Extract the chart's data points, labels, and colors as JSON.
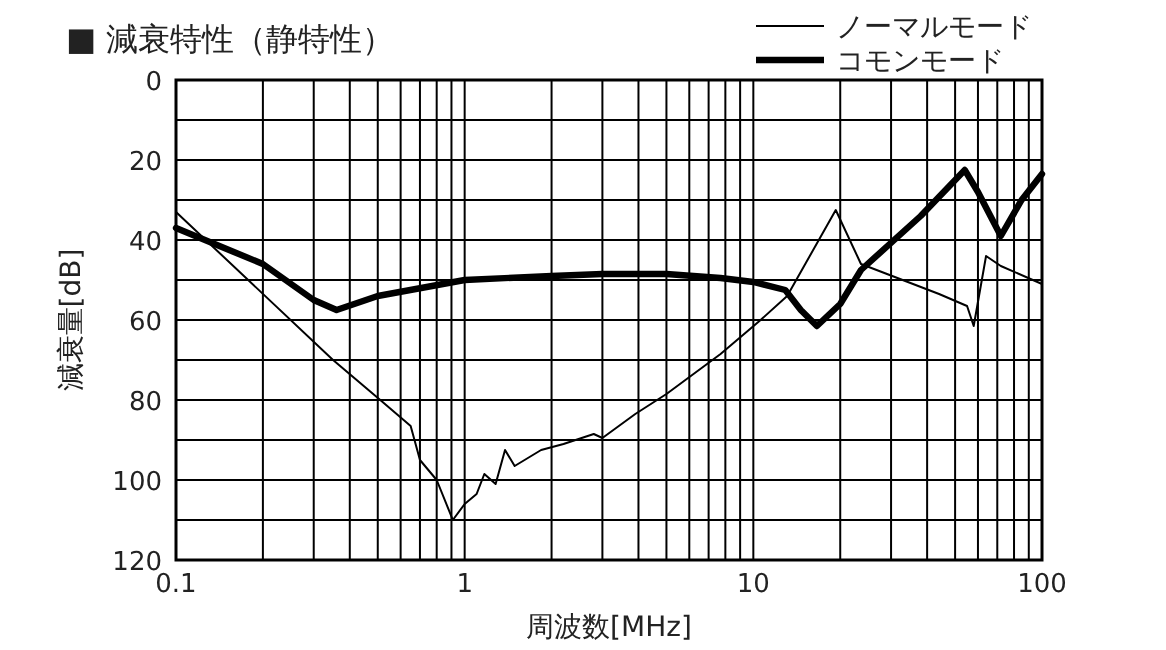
{
  "chart_data": {
    "type": "line",
    "title": "■ 減衰特性（静特性）",
    "xlabel": "周波数[MHz]",
    "ylabel": "減衰量[dB]",
    "log": "x",
    "grid": true,
    "legend": "top right",
    "marker": "none",
    "line_style": "solid",
    "xlim": [
      0.1,
      100
    ],
    "ylim": [
      120,
      0
    ],
    "xticks": [
      0.1,
      {
        "value": 0.2,
        "label": null
      },
      {
        "value": 0.3,
        "label": null
      },
      {
        "value": 0.4,
        "label": null
      },
      {
        "value": 0.5,
        "label": null
      },
      {
        "value": 0.6,
        "label": null
      },
      {
        "value": 0.7,
        "label": null
      },
      {
        "value": 0.8,
        "label": null
      },
      {
        "value": 0.9,
        "label": null
      },
      1,
      {
        "value": 2,
        "label": null
      },
      {
        "value": 3,
        "label": null
      },
      {
        "value": 4,
        "label": null
      },
      {
        "value": 5,
        "label": null
      },
      {
        "value": 6,
        "label": null
      },
      {
        "value": 7,
        "label": null
      },
      {
        "value": 8,
        "label": null
      },
      {
        "value": 9,
        "label": null
      },
      10,
      {
        "value": 20,
        "label": null
      },
      {
        "value": 30,
        "label": null
      },
      {
        "value": 40,
        "label": null
      },
      {
        "value": 50,
        "label": null
      },
      {
        "value": 60,
        "label": null
      },
      {
        "value": 70,
        "label": null
      },
      {
        "value": 80,
        "label": null
      },
      {
        "value": 90,
        "label": null
      },
      100
    ],
    "yticks": [
      0,
      {
        "value": 10,
        "label": null
      },
      20,
      {
        "value": 30,
        "label": null
      },
      40,
      {
        "value": 50,
        "label": null
      },
      60,
      {
        "value": 70,
        "label": null
      },
      80,
      {
        "value": 90,
        "label": null
      },
      100,
      {
        "value": 110,
        "label": null
      },
      120
    ],
    "series": [
      {
        "name": "ノーマルモード",
        "color": "#000000",
        "x": [
          0.1,
          0.35,
          0.51,
          0.65,
          0.7,
          0.8,
          0.91,
          1.0,
          1.1,
          1.17,
          1.28,
          1.38,
          1.49,
          1.84,
          2.2,
          2.8,
          3.0,
          3.9,
          5.0,
          7.7,
          10.6,
          13.1,
          19.3,
          23.6,
          44,
          55,
          58,
          64,
          72,
          100
        ],
        "values": [
          33,
          70,
          80,
          86.5,
          95,
          100,
          110,
          106,
          103.5,
          98.5,
          101,
          92.5,
          96.5,
          92.5,
          91,
          88.5,
          89.5,
          83.5,
          78.5,
          68.5,
          60,
          54,
          32.5,
          46,
          53.5,
          56.5,
          61.5,
          44,
          46.5,
          51
        ]
      },
      {
        "name": "コモンモード",
        "color": "#000000",
        "x": [
          0.1,
          0.2,
          0.3,
          0.36,
          0.5,
          1,
          2,
          3,
          5,
          7.7,
          10,
          12.9,
          14.6,
          16.6,
          20,
          23.6,
          38,
          54,
          60,
          72,
          85,
          100
        ],
        "values": [
          37,
          46,
          55,
          57.5,
          54,
          50,
          49,
          48.5,
          48.5,
          49.5,
          50.5,
          52.5,
          57.5,
          61.5,
          56,
          47.5,
          34,
          22.5,
          28,
          39,
          30,
          23.5
        ]
      }
    ]
  }
}
